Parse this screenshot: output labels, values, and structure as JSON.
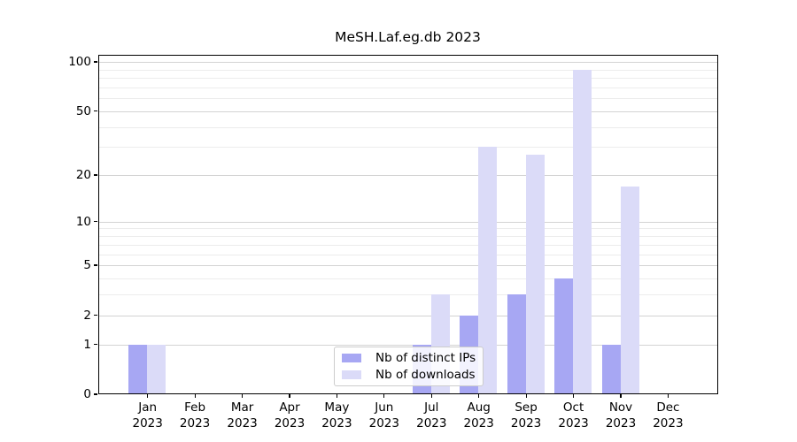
{
  "chart_data": {
    "type": "bar",
    "title": "MeSH.Laf.eg.db 2023",
    "categories": [
      {
        "month": "Jan",
        "year": "2023"
      },
      {
        "month": "Feb",
        "year": "2023"
      },
      {
        "month": "Mar",
        "year": "2023"
      },
      {
        "month": "Apr",
        "year": "2023"
      },
      {
        "month": "May",
        "year": "2023"
      },
      {
        "month": "Jun",
        "year": "2023"
      },
      {
        "month": "Jul",
        "year": "2023"
      },
      {
        "month": "Aug",
        "year": "2023"
      },
      {
        "month": "Sep",
        "year": "2023"
      },
      {
        "month": "Oct",
        "year": "2023"
      },
      {
        "month": "Nov",
        "year": "2023"
      },
      {
        "month": "Dec",
        "year": "2023"
      }
    ],
    "series": [
      {
        "name": "Nb of distinct IPs",
        "color": "#a7a7f3",
        "values": [
          1,
          0,
          0,
          0,
          0,
          0,
          1,
          2,
          3,
          4,
          1,
          0
        ]
      },
      {
        "name": "Nb of downloads",
        "color": "#dbdbf8",
        "values": [
          1,
          0,
          0,
          0,
          0,
          0,
          3,
          30,
          27,
          90,
          17,
          0
        ]
      }
    ],
    "xlabel": "",
    "ylabel": "",
    "yscale": "log1p",
    "yticks": [
      0,
      1,
      2,
      5,
      10,
      20,
      50,
      100
    ],
    "minor_yticks": [
      3,
      4,
      6,
      7,
      8,
      9,
      30,
      40,
      60,
      70,
      80,
      90
    ],
    "ylim": [
      0,
      110
    ],
    "grid": "horizontal",
    "legend_position": "inside-bottom-center",
    "colors": {
      "major_grid": "#d3d3d3",
      "minor_grid": "#ececec",
      "axis": "#000000",
      "legend_border": "#cccccc"
    }
  }
}
